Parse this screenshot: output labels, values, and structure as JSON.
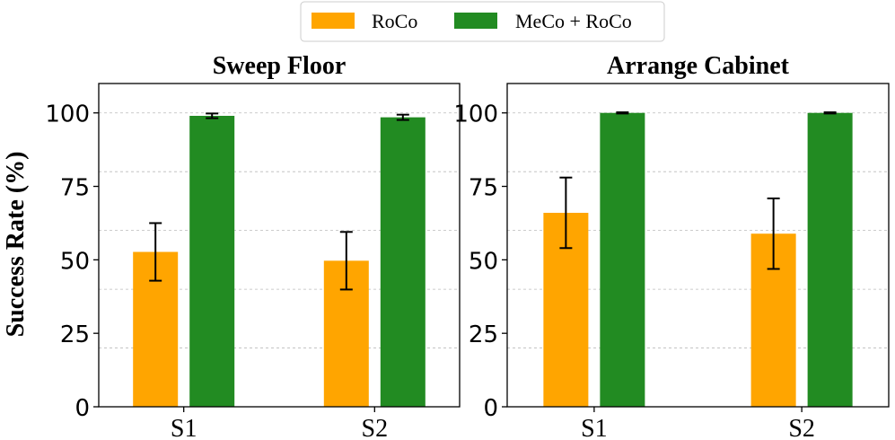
{
  "legend": {
    "items": [
      {
        "label": "RoCo",
        "color": "#FFA500"
      },
      {
        "label": "MeCo + RoCo",
        "color": "#228B22"
      }
    ]
  },
  "ylabel": "Success Rate (%)",
  "chart_data": [
    {
      "type": "bar",
      "title": "Sweep Floor",
      "categories": [
        "S1",
        "S2"
      ],
      "series": [
        {
          "name": "RoCo",
          "color": "#FFA500",
          "values": [
            52.7,
            49.7
          ],
          "errors": [
            9.8,
            9.8
          ]
        },
        {
          "name": "MeCo + RoCo",
          "color": "#228B22",
          "values": [
            99.0,
            98.5
          ],
          "errors": [
            0.8,
            0.9
          ]
        }
      ],
      "ylim": [
        0,
        110
      ],
      "yticks": [
        0,
        25,
        50,
        75,
        100
      ],
      "gridlines": [
        20,
        40,
        60,
        80,
        100
      ],
      "xlabel": "",
      "ylabel": "Success Rate (%)"
    },
    {
      "type": "bar",
      "title": "Arrange Cabinet",
      "categories": [
        "S1",
        "S2"
      ],
      "series": [
        {
          "name": "RoCo",
          "color": "#FFA500",
          "values": [
            66.0,
            58.9
          ],
          "errors": [
            12.0,
            12.0
          ]
        },
        {
          "name": "MeCo + RoCo",
          "color": "#228B22",
          "values": [
            100.0,
            100.0
          ],
          "errors": [
            0.2,
            0.2
          ]
        }
      ],
      "ylim": [
        0,
        110
      ],
      "yticks": [
        0,
        25,
        50,
        75,
        100
      ],
      "gridlines": [
        20,
        40,
        60,
        80,
        100
      ],
      "xlabel": "",
      "ylabel": ""
    }
  ]
}
